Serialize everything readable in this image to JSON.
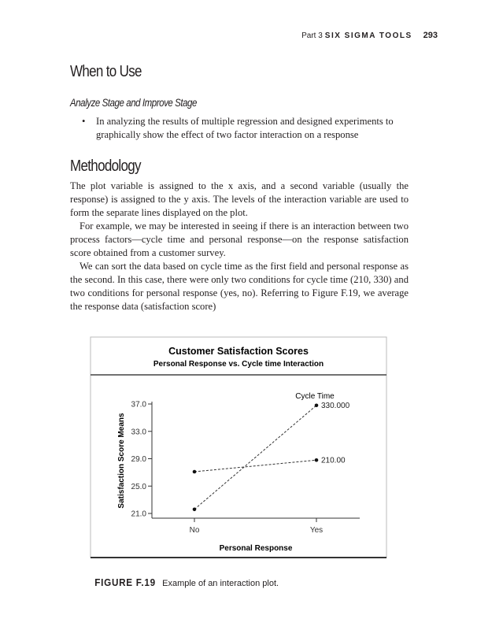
{
  "header": {
    "part": "Part 3",
    "section": "SIX SIGMA TOOLS",
    "page_number": "293"
  },
  "when_to_use": {
    "heading": "When to Use",
    "subheading": "Analyze Stage and Improve Stage",
    "bullets": [
      "In analyzing the results of multiple regression and designed experiments to graphically show the effect of two factor interaction on a response"
    ]
  },
  "methodology": {
    "heading": "Methodology",
    "paragraphs": [
      "The plot variable is assigned to the x axis, and a second variable (usually the response) is assigned to the y axis. The levels of the interaction variable are used to form the separate lines displayed on the plot.",
      "For example, we may be interested in seeing if there is an interaction between two process factors—cycle time and personal response—on the response satisfaction score obtained from a customer survey.",
      "We can sort the data based on cycle time as the first field and personal response as the second. In this case, there were only two conditions for cycle time (210, 330) and two conditions for personal response (yes, no). Referring to Figure F.19, we average the response data (satisfaction score)"
    ]
  },
  "chart_data": {
    "type": "line",
    "title": "Customer Satisfaction Scores",
    "subtitle": "Personal Response vs. Cycle time Interaction",
    "xlabel": "Personal Response",
    "ylabel": "Satisfaction Score Means",
    "categories": [
      "No",
      "Yes"
    ],
    "yticks": [
      "21.0",
      "25.0",
      "29.0",
      "33.0",
      "37.0"
    ],
    "ylim": [
      21,
      37
    ],
    "legend_title": "Cycle Time",
    "legend_placement": "right, at line ends",
    "line_style": "dashed",
    "series": [
      {
        "name": "330.000",
        "values": [
          21.6,
          36.8
        ]
      },
      {
        "name": "210.00",
        "values": [
          27.1,
          28.8
        ]
      }
    ],
    "grid": false
  },
  "caption": {
    "label": "FIGURE F.19",
    "text": "Example of an interaction plot."
  }
}
